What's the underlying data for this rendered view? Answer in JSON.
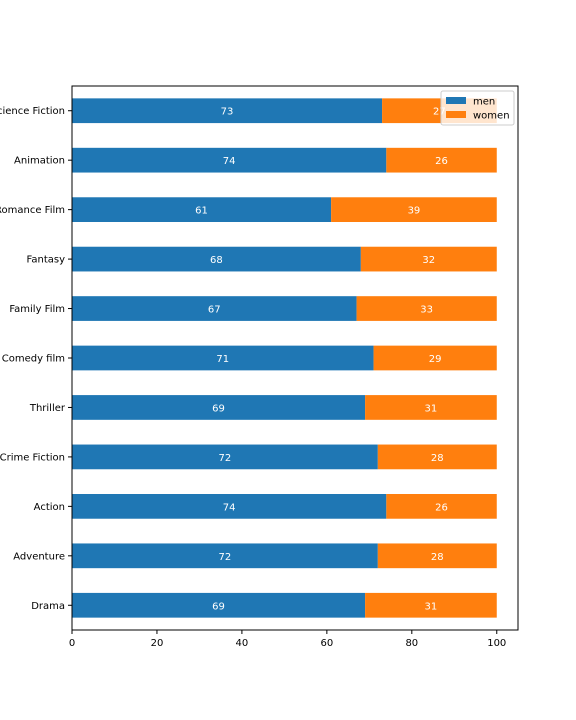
{
  "chart_data": {
    "type": "bar",
    "orientation": "horizontal",
    "stacked": true,
    "categories": [
      "Drama",
      "Adventure",
      "Action",
      "Crime Fiction",
      "Thriller",
      "Comedy film",
      "Family Film",
      "Fantasy",
      "Romance Film",
      "Animation",
      "Science Fiction"
    ],
    "series": [
      {
        "name": "men",
        "color": "#1f77b4",
        "values": [
          69,
          72,
          74,
          72,
          69,
          71,
          67,
          68,
          61,
          74,
          73
        ]
      },
      {
        "name": "women",
        "color": "#ff7f0e",
        "values": [
          31,
          28,
          26,
          28,
          31,
          29,
          33,
          32,
          39,
          26,
          27
        ]
      }
    ],
    "xlim": [
      0,
      105
    ],
    "xticks": [
      0,
      20,
      40,
      60,
      80,
      100
    ],
    "grid": false,
    "legend": "top-right"
  }
}
